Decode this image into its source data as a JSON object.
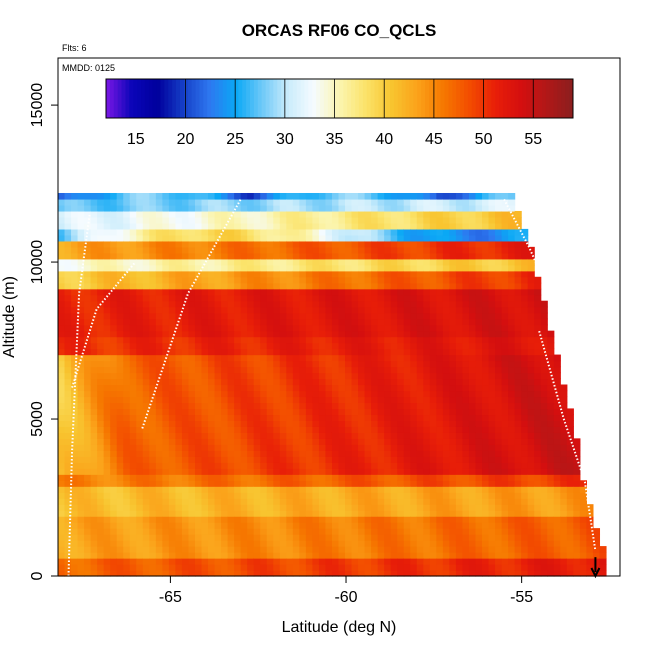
{
  "chart_data": {
    "type": "heatmap",
    "title": "ORCAS RF06 CO_QCLS",
    "xlabel": "Latitude (deg N)",
    "ylabel": "Altitude (m)",
    "xlim": [
      -68.2,
      -52.2
    ],
    "ylim": [
      0,
      16500
    ],
    "x_ticks": [
      -65,
      -60,
      -55
    ],
    "x_tick_labels": [
      "-65",
      "-60",
      "-55"
    ],
    "y_ticks": [
      0,
      5000,
      10000,
      15000
    ],
    "y_tick_labels": [
      "0",
      "5000",
      "10000",
      "15000"
    ],
    "annotations": {
      "flights": "Flts: 6",
      "date": "MMDD: 0125"
    },
    "colorbar": {
      "range": [
        12,
        59
      ],
      "ticks": [
        15,
        20,
        25,
        30,
        35,
        40,
        45,
        50,
        55
      ],
      "tick_labels": [
        "15",
        "20",
        "25",
        "30",
        "35",
        "40",
        "45",
        "50",
        "55"
      ],
      "dividers": [
        20,
        25,
        30,
        35,
        40,
        45,
        50,
        55
      ],
      "colors": [
        "#7b17e6",
        "#0a05b8",
        "#00009d",
        "#1640c8",
        "#2e78f0",
        "#0aa8f5",
        "#6cc8f8",
        "#c9ecfb",
        "#f5fbff",
        "#fbf5b0",
        "#fbe36a",
        "#f8c530",
        "#fba21a",
        "#f67800",
        "#f34d00",
        "#e81e08",
        "#d40f0f",
        "#b01818",
        "#8b1f1f"
      ]
    },
    "grid": {
      "x_edges": [
        -68.2,
        -52.6
      ],
      "y_range": [
        0,
        12200
      ],
      "column_count": 84,
      "row_count": 64
    },
    "altitude_profiles": [
      {
        "name": "profile_a",
        "points": [
          [
            -67.9,
            0
          ],
          [
            -67.8,
            4000
          ],
          [
            -67.6,
            9000
          ],
          [
            -67.3,
            11500
          ]
        ]
      },
      {
        "name": "profile_b",
        "points": [
          [
            -67.8,
            6000
          ],
          [
            -67.1,
            8500
          ],
          [
            -66.0,
            10000
          ]
        ]
      },
      {
        "name": "profile_c",
        "points": [
          [
            -65.8,
            4700
          ],
          [
            -64.5,
            9000
          ],
          [
            -63.0,
            12000
          ]
        ]
      },
      {
        "name": "profile_d",
        "points": [
          [
            -55.5,
            12000
          ],
          [
            -54.8,
            10500
          ],
          [
            -54.0,
            8500
          ]
        ]
      },
      {
        "name": "profile_e",
        "points": [
          [
            -54.5,
            7800
          ],
          [
            -53.8,
            5000
          ],
          [
            -53.2,
            3000
          ],
          [
            -52.9,
            800
          ]
        ]
      }
    ],
    "descent_marker": {
      "latitude": -52.9,
      "altitude_top": 600,
      "altitude_bottom": 0
    }
  }
}
